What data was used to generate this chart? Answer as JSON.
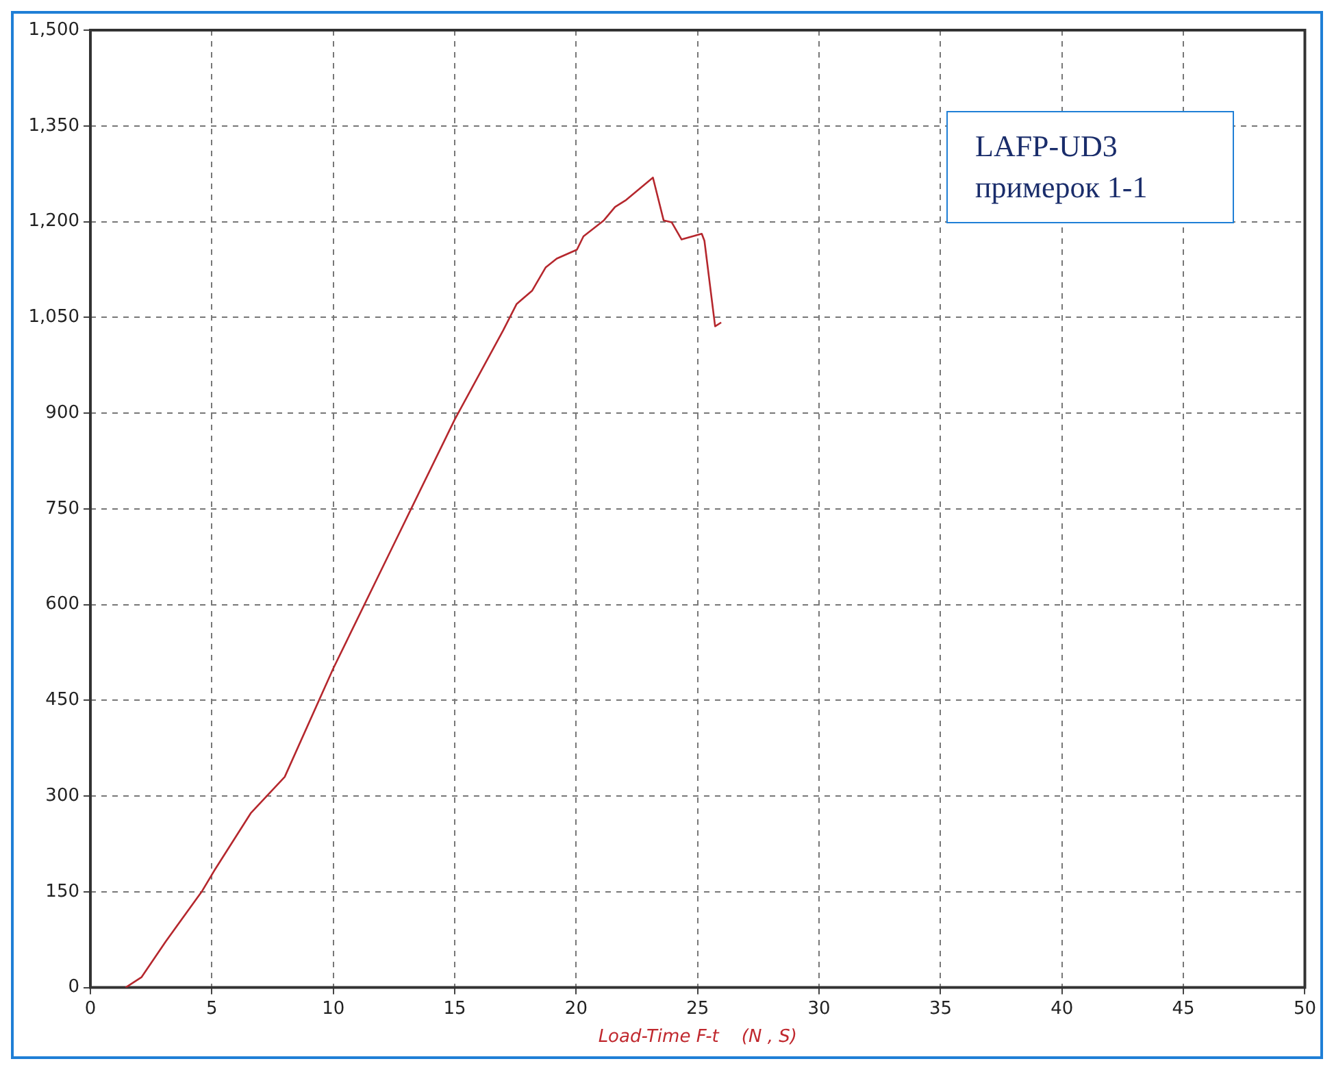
{
  "chart_data": {
    "type": "line",
    "xlabel": "Load-Time F-t    (N , S)",
    "annotations": [
      "LAFP-UD3",
      "примерок 1-1"
    ],
    "series": [
      {
        "color": "#b5272d",
        "x": [
          1.45,
          2.1,
          3.1,
          4.58,
          5.13,
          6.6,
          8,
          10,
          12.5,
          15,
          16,
          17,
          17.55,
          18.19,
          18.74,
          19.2,
          20.03,
          20.3,
          21.14,
          21.6,
          22.06,
          23.16,
          23.6,
          23.93,
          24.34,
          25.17,
          25.28,
          25.72,
          25.97
        ],
        "values": [
          0,
          16,
          72,
          150,
          185,
          273,
          330,
          500,
          695,
          890,
          960,
          1030,
          1071,
          1092,
          1128,
          1142,
          1156,
          1177,
          1202,
          1223,
          1234,
          1269,
          1202,
          1199,
          1172,
          1181,
          1170,
          1036,
          1042
        ]
      }
    ],
    "xlim": [
      0,
      50
    ],
    "xticks": [
      0,
      5,
      10,
      15,
      20,
      25,
      30,
      35,
      40,
      45,
      50
    ],
    "ylim": [
      0,
      1500
    ],
    "yticks": [
      0,
      150,
      300,
      450,
      600,
      750,
      900,
      {
        "value": 1050,
        "label": "1,050"
      },
      {
        "value": 1200,
        "label": "1,200"
      },
      {
        "value": 1350,
        "label": "1,350"
      },
      {
        "value": 1500,
        "label": "1,500"
      }
    ],
    "grid": true,
    "marker": "none",
    "line_style": "solid"
  }
}
